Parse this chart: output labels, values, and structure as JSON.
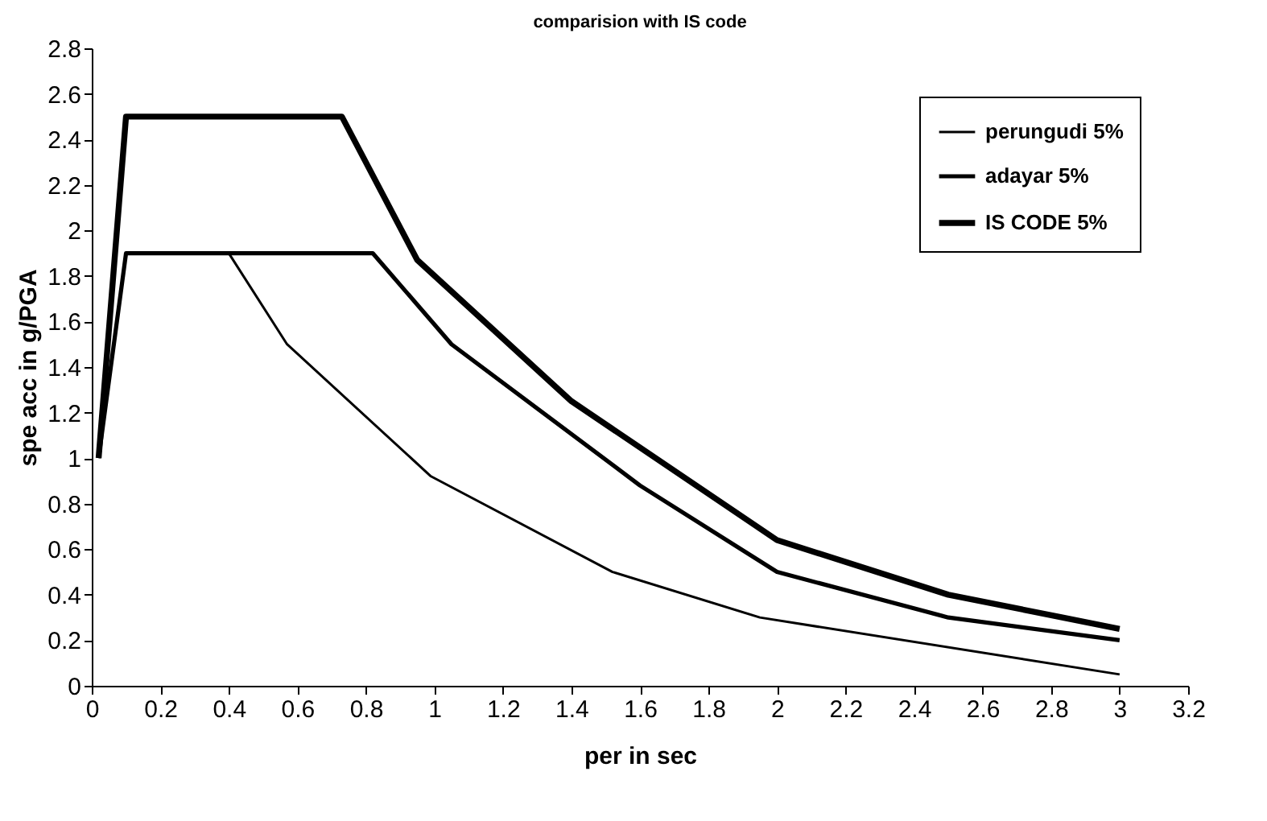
{
  "chart_data": {
    "type": "line",
    "title": "comparision with IS code",
    "xlabel": "per in sec",
    "ylabel": "spe acc in g/PGA",
    "series": [
      {
        "name": "perungudi 5%",
        "color": "#000000",
        "x": [
          0.02,
          0.1,
          0.4,
          0.57,
          0.99,
          1.52,
          1.95,
          3.0
        ],
        "values": [
          1.0,
          1.9,
          1.9,
          1.5,
          0.92,
          0.5,
          0.3,
          0.05
        ]
      },
      {
        "name": "adayar 5%",
        "color": "#000000",
        "x": [
          0.02,
          0.1,
          0.82,
          1.05,
          1.6,
          2.0,
          2.5,
          3.0
        ],
        "values": [
          1.0,
          1.9,
          1.9,
          1.5,
          0.88,
          0.5,
          0.3,
          0.2
        ]
      },
      {
        "name": "IS CODE 5%",
        "color": "#000000",
        "x": [
          0.02,
          0.1,
          0.73,
          0.95,
          1.4,
          2.0,
          2.5,
          3.0
        ],
        "values": [
          1.0,
          2.5,
          2.5,
          1.87,
          1.25,
          0.64,
          0.4,
          0.25
        ]
      }
    ],
    "xlim": [
      0,
      3.2
    ],
    "xticks": [
      0,
      0.2,
      0.4,
      0.6,
      0.8,
      1,
      1.2,
      1.4,
      1.6,
      1.8,
      2,
      2.2,
      2.4,
      2.6,
      2.8,
      3,
      3.2
    ],
    "ylim": [
      0,
      2.8
    ],
    "yticks": [
      0,
      0.2,
      0.4,
      0.6,
      0.8,
      1,
      1.2,
      1.4,
      1.6,
      1.8,
      2,
      2.2,
      2.4,
      2.6,
      2.8
    ],
    "grid": false,
    "legend": "top right",
    "marker": "none",
    "line_style": "solid"
  }
}
